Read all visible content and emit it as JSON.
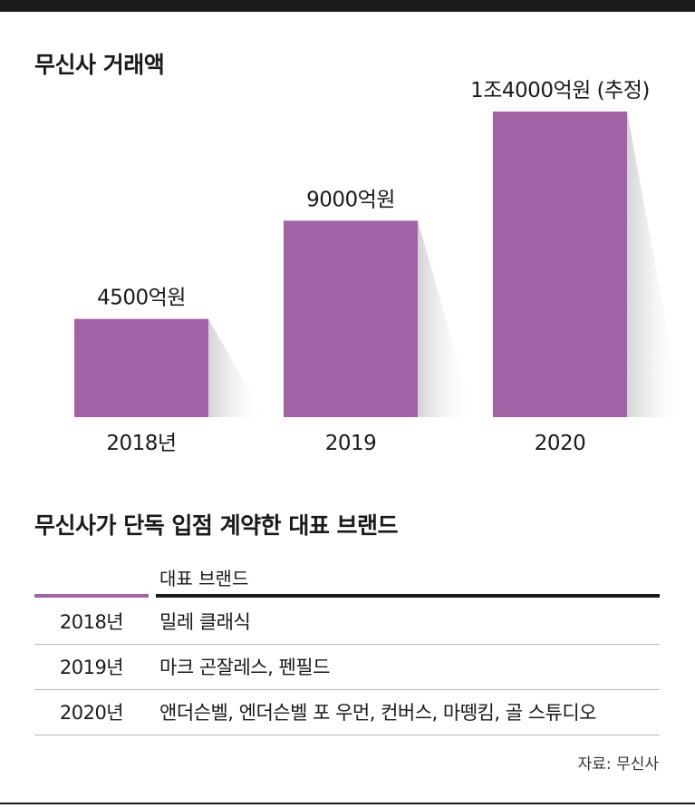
{
  "chart_data": {
    "type": "bar",
    "title": "무신사 거래액",
    "categories": [
      "2018년",
      "2019",
      "2020"
    ],
    "values": [
      4500,
      9000,
      14000
    ],
    "value_labels": [
      "4500억원",
      "9000억원",
      "1조4000억원 (추정)"
    ],
    "unit": "억원",
    "bar_color": "#a462a6",
    "ylim": [
      0,
      14000
    ],
    "grid": false,
    "legend": "none"
  },
  "table": {
    "title": "무신사가 단독 입점 계약한 대표 브랜드",
    "header": "대표 브랜드",
    "accent_color": "#a462a6",
    "rows": [
      {
        "year": "2018년",
        "brands": "밀레 클래식"
      },
      {
        "year": "2019년",
        "brands": "마크 곤잘레스, 펜필드"
      },
      {
        "year": "2020년",
        "brands": "앤더슨벨, 엔더슨벨 포 우먼, 컨버스, 마뗑킴, 골 스튜디오"
      }
    ]
  },
  "source": "자료: 무신사"
}
